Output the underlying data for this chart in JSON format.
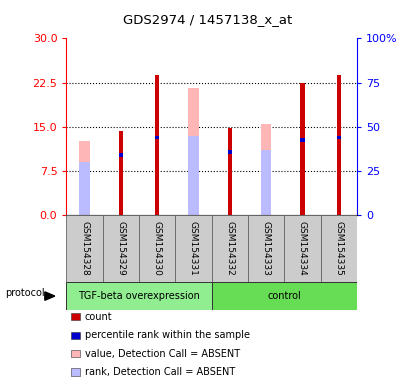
{
  "title": "GDS2974 / 1457138_x_at",
  "samples": [
    "GSM154328",
    "GSM154329",
    "GSM154330",
    "GSM154331",
    "GSM154332",
    "GSM154333",
    "GSM154334",
    "GSM154335"
  ],
  "red_bars": [
    null,
    14.2,
    23.8,
    null,
    14.7,
    null,
    22.5,
    23.8
  ],
  "pink_bars": [
    12.5,
    null,
    null,
    21.5,
    null,
    15.5,
    null,
    null
  ],
  "blue_bars": [
    null,
    10.5,
    13.5,
    null,
    11.0,
    null,
    13.0,
    13.5
  ],
  "lavender_bars": [
    9.0,
    null,
    null,
    13.5,
    null,
    11.0,
    null,
    null
  ],
  "ylim_left": [
    0,
    30
  ],
  "ylim_right": [
    0,
    100
  ],
  "yticks_left": [
    0,
    7.5,
    15,
    22.5,
    30
  ],
  "yticks_right": [
    0,
    25,
    50,
    75,
    100
  ],
  "ytick_labels_right": [
    "0",
    "25",
    "50",
    "75",
    "100%"
  ],
  "red_color": "#CC0000",
  "pink_color": "#FFB6B6",
  "blue_color": "#0000CC",
  "lavender_color": "#BBBBFF",
  "tgf_color": "#90EE90",
  "ctrl_color": "#66DD55",
  "grey_color": "#CCCCCC",
  "legend_items": [
    "count",
    "percentile rank within the sample",
    "value, Detection Call = ABSENT",
    "rank, Detection Call = ABSENT"
  ],
  "legend_colors": [
    "#CC0000",
    "#0000CC",
    "#FFB6B6",
    "#BBBBFF"
  ]
}
